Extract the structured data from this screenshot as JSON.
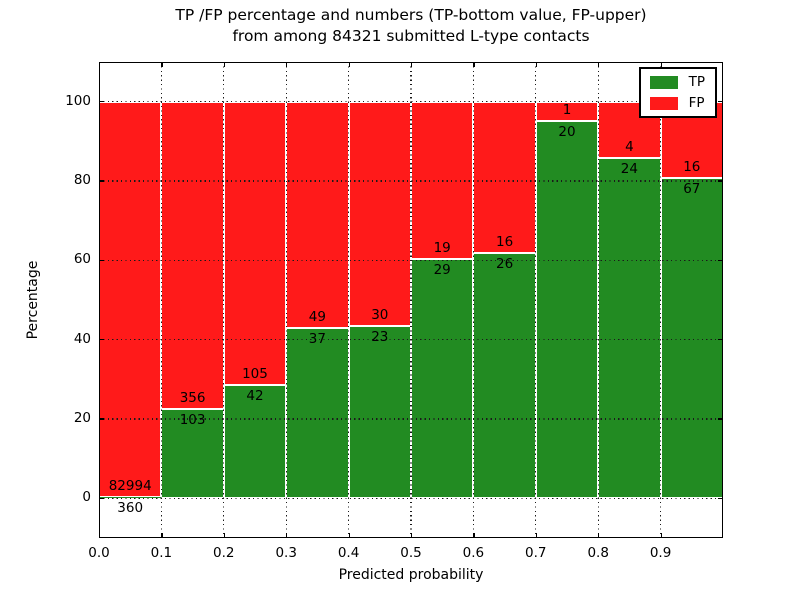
{
  "figure": {
    "title_line1": "TP /FP percentage and numbers (TP-bottom value, FP-upper)",
    "title_line2": "from among 84321 submitted L-type contacts",
    "xlabel": "Predicted probability",
    "ylabel": "Percentage"
  },
  "legend": {
    "entries": [
      {
        "label": "TP",
        "color": "#228B22"
      },
      {
        "label": "FP",
        "color": "#FF1A1A"
      }
    ]
  },
  "chart_data": {
    "type": "bar",
    "stacked": true,
    "title": "TP /FP percentage and numbers (TP-bottom value, FP-upper) from among 84321 submitted L-type contacts",
    "xlabel": "Predicted probability",
    "ylabel": "Percentage",
    "total_contacts_in_title": 84321,
    "bins": [
      "0.0-0.1",
      "0.1-0.2",
      "0.2-0.3",
      "0.3-0.4",
      "0.4-0.5",
      "0.5-0.6",
      "0.6-0.7",
      "0.7-0.8",
      "0.8-0.9",
      "0.9-1.0"
    ],
    "series": [
      {
        "name": "TP",
        "color": "#228B22",
        "values": [
          360,
          103,
          42,
          37,
          23,
          29,
          26,
          20,
          24,
          67
        ]
      },
      {
        "name": "FP",
        "color": "#FF1A1A",
        "values": [
          82994,
          356,
          105,
          49,
          30,
          19,
          16,
          1,
          4,
          16
        ]
      }
    ],
    "tp_percent": [
      0.43,
      22.44,
      28.57,
      43.02,
      43.4,
      60.42,
      61.9,
      95.24,
      85.71,
      80.72
    ],
    "x_tick_labels": [
      "0.0",
      "0.1",
      "0.2",
      "0.3",
      "0.4",
      "0.5",
      "0.6",
      "0.7",
      "0.8",
      "0.9"
    ],
    "y_ticks": [
      0,
      20,
      40,
      60,
      80,
      100
    ],
    "y_tick_labels": [
      "0",
      "20",
      "40",
      "60",
      "80",
      "100"
    ],
    "xlim": [
      0,
      1
    ],
    "ylim": [
      -10,
      110
    ],
    "grid": "dotted",
    "legend_position": "upper right"
  }
}
